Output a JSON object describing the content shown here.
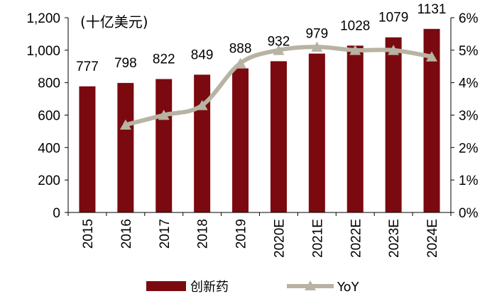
{
  "chart_data": {
    "type": "bar",
    "unit_label": "(十亿美元)",
    "categories": [
      "2015",
      "2016",
      "2017",
      "2018",
      "2019",
      "2020E",
      "2021E",
      "2022E",
      "2023E",
      "2024E"
    ],
    "series": [
      {
        "name": "创新药",
        "type": "bar",
        "axis": "left",
        "color": "#7a0a0f",
        "values": [
          777,
          798,
          822,
          849,
          888,
          932,
          979,
          1028,
          1079,
          1131
        ]
      },
      {
        "name": "YoY",
        "type": "line",
        "axis": "right",
        "color": "#b8b3a2",
        "marker": "triangle",
        "values": [
          null,
          2.7,
          3.0,
          3.3,
          4.6,
          5.0,
          5.1,
          5.0,
          5.0,
          4.8
        ]
      }
    ],
    "left_axis": {
      "min": 0,
      "max": 1200,
      "step": 200,
      "tick_labels": [
        "0",
        "200",
        "400",
        "600",
        "800",
        "1,000",
        "1,200"
      ]
    },
    "right_axis": {
      "min": 0,
      "max": 6,
      "step": 1,
      "tick_labels": [
        "0%",
        "1%",
        "2%",
        "3%",
        "4%",
        "5%",
        "6%"
      ]
    },
    "data_labels": [
      "777",
      "798",
      "822",
      "849",
      "888",
      "932",
      "979",
      "1028",
      "1079",
      "1131"
    ],
    "grid": false,
    "legend_position": "bottom"
  }
}
